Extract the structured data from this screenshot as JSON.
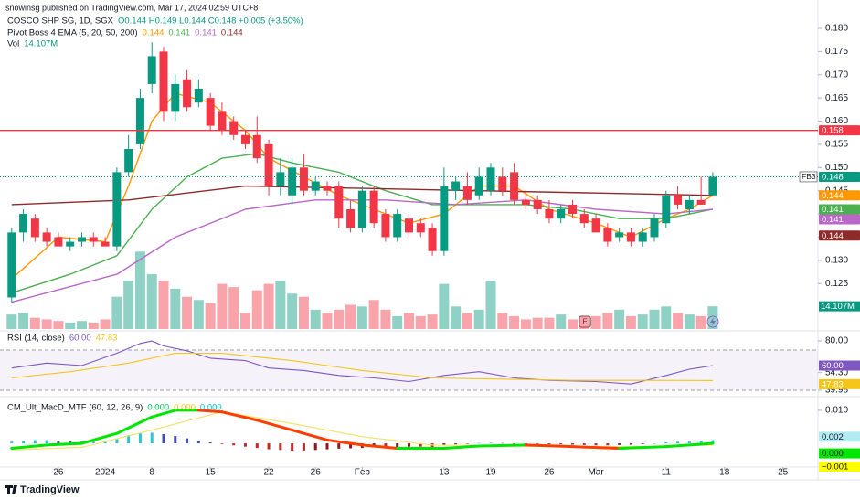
{
  "header": {
    "publisher": "snowinsg published on TradingView.com, Mar 17, 2024 02:59 UTC+8",
    "symbol": "COSCO SHP SG, 1D, SGX",
    "ohlc": "O0.144 H0.149 L0.144 C0.148 +0.005 (+3.50%)",
    "ema_title": "Pivot Boss 4 EMA (5, 20, 50, 200)",
    "vol_title": "Vol",
    "events_marker": "E"
  },
  "footer": "TradingView",
  "chart_data": [
    {
      "type": "candlestick",
      "title": "COSCO SHP SG, 1D, SGX",
      "up_color": "#089981",
      "down_color": "#f23645",
      "x": [
        0,
        1,
        2,
        3,
        4,
        5,
        6,
        7,
        8,
        9,
        10,
        11,
        12,
        13,
        14,
        15,
        16,
        17,
        18,
        19,
        20,
        21,
        22,
        23,
        24,
        25,
        26,
        27,
        28,
        29,
        30,
        31,
        32,
        33,
        34,
        35,
        36,
        37,
        38,
        39,
        40,
        41,
        42,
        43,
        44,
        45,
        46,
        47,
        48,
        49,
        50,
        51,
        52,
        53,
        54,
        55,
        56,
        57,
        58,
        59,
        60
      ],
      "open": [
        0.122,
        0.136,
        0.139,
        0.136,
        0.135,
        0.133,
        0.134,
        0.135,
        0.134,
        0.133,
        0.149,
        0.155,
        0.168,
        0.175,
        0.162,
        0.169,
        0.164,
        0.165,
        0.162,
        0.16,
        0.157,
        0.157,
        0.155,
        0.146,
        0.144,
        0.15,
        0.145,
        0.146,
        0.146,
        0.141,
        0.137,
        0.145,
        0.14,
        0.135,
        0.139,
        0.138,
        0.137,
        0.132,
        0.145,
        0.146,
        0.144,
        0.145,
        0.148,
        0.149,
        0.143,
        0.143,
        0.141,
        0.139,
        0.142,
        0.14,
        0.139,
        0.137,
        0.135,
        0.136,
        0.134,
        0.135,
        0.138,
        0.144,
        0.141,
        0.143,
        0.144
      ],
      "high": [
        0.137,
        0.141,
        0.14,
        0.137,
        0.136,
        0.135,
        0.136,
        0.136,
        0.135,
        0.15,
        0.157,
        0.167,
        0.177,
        0.176,
        0.17,
        0.171,
        0.169,
        0.166,
        0.164,
        0.161,
        0.158,
        0.161,
        0.156,
        0.152,
        0.152,
        0.153,
        0.148,
        0.147,
        0.147,
        0.143,
        0.146,
        0.146,
        0.141,
        0.141,
        0.14,
        0.139,
        0.138,
        0.15,
        0.148,
        0.149,
        0.15,
        0.151,
        0.15,
        0.151,
        0.145,
        0.144,
        0.143,
        0.142,
        0.143,
        0.141,
        0.14,
        0.138,
        0.137,
        0.137,
        0.137,
        0.14,
        0.145,
        0.146,
        0.144,
        0.148,
        0.149
      ],
      "low": [
        0.121,
        0.134,
        0.134,
        0.133,
        0.133,
        0.132,
        0.133,
        0.133,
        0.133,
        0.132,
        0.148,
        0.154,
        0.166,
        0.16,
        0.16,
        0.162,
        0.163,
        0.158,
        0.157,
        0.156,
        0.154,
        0.151,
        0.144,
        0.144,
        0.142,
        0.144,
        0.144,
        0.144,
        0.137,
        0.136,
        0.136,
        0.137,
        0.134,
        0.134,
        0.135,
        0.135,
        0.131,
        0.131,
        0.143,
        0.142,
        0.143,
        0.144,
        0.144,
        0.142,
        0.141,
        0.14,
        0.138,
        0.138,
        0.139,
        0.137,
        0.136,
        0.133,
        0.134,
        0.133,
        0.133,
        0.134,
        0.137,
        0.141,
        0.14,
        0.142,
        0.144
      ],
      "close": [
        0.136,
        0.14,
        0.135,
        0.134,
        0.133,
        0.134,
        0.135,
        0.134,
        0.133,
        0.149,
        0.154,
        0.165,
        0.174,
        0.162,
        0.168,
        0.163,
        0.167,
        0.159,
        0.158,
        0.157,
        0.155,
        0.152,
        0.146,
        0.149,
        0.15,
        0.145,
        0.147,
        0.145,
        0.139,
        0.137,
        0.145,
        0.138,
        0.135,
        0.14,
        0.136,
        0.136,
        0.132,
        0.146,
        0.147,
        0.143,
        0.148,
        0.15,
        0.145,
        0.143,
        0.142,
        0.141,
        0.139,
        0.141,
        0.14,
        0.138,
        0.136,
        0.134,
        0.136,
        0.134,
        0.136,
        0.139,
        0.144,
        0.142,
        0.143,
        0.142,
        0.148
      ],
      "volume": [
        9,
        10,
        7,
        6,
        5,
        4,
        5,
        4,
        6,
        20,
        30,
        48,
        34,
        30,
        25,
        20,
        18,
        16,
        28,
        26,
        10,
        24,
        28,
        30,
        22,
        20,
        12,
        10,
        12,
        15,
        14,
        18,
        12,
        8,
        10,
        8,
        9,
        28,
        14,
        10,
        12,
        30,
        10,
        8,
        6,
        7,
        7,
        9,
        6,
        8,
        8,
        10,
        12,
        8,
        9,
        12,
        14,
        10,
        9,
        8,
        14.107
      ],
      "volume_last_label": "14.107M",
      "volume_lim": [
        0,
        55
      ],
      "series": [
        {
          "color": "#ff9800",
          "x": [
            0,
            4,
            8,
            10,
            12,
            14,
            17,
            20,
            22,
            25,
            28,
            31,
            34,
            37,
            40,
            43,
            46,
            50,
            53,
            56,
            58,
            60
          ],
          "values": [
            0.126,
            0.135,
            0.134,
            0.146,
            0.16,
            0.166,
            0.164,
            0.158,
            0.152,
            0.148,
            0.144,
            0.141,
            0.138,
            0.14,
            0.146,
            0.146,
            0.141,
            0.138,
            0.135,
            0.139,
            0.141,
            0.144
          ]
        },
        {
          "color": "#4caf50",
          "x": [
            0,
            5,
            9,
            12,
            15,
            18,
            21,
            24,
            28,
            32,
            36,
            40,
            44,
            48,
            52,
            56,
            60
          ],
          "values": [
            0.123,
            0.127,
            0.131,
            0.141,
            0.148,
            0.152,
            0.153,
            0.151,
            0.149,
            0.145,
            0.142,
            0.142,
            0.142,
            0.141,
            0.139,
            0.139,
            0.141
          ]
        },
        {
          "color": "#ba68c8",
          "x": [
            0,
            9,
            14,
            20,
            26,
            32,
            38,
            44,
            50,
            56,
            60
          ],
          "values": [
            0.121,
            0.127,
            0.135,
            0.141,
            0.143,
            0.143,
            0.142,
            0.143,
            0.141,
            0.14,
            0.141
          ]
        },
        {
          "color": "#8d2a2a",
          "x": [
            0,
            10,
            20,
            30,
            40,
            50,
            60
          ],
          "values": [
            0.142,
            0.143,
            0.146,
            0.1455,
            0.145,
            0.1445,
            0.144
          ]
        }
      ],
      "hlines": [
        {
          "value": 0.158,
          "color": "#f23645"
        }
      ],
      "last_price": 0.148,
      "last_price_tag": "FB3",
      "xlim": [
        -1,
        69
      ],
      "xticks": [
        {
          "value": 4,
          "label": "26"
        },
        {
          "value": 8,
          "label": "2024"
        },
        {
          "value": 12,
          "label": "8"
        },
        {
          "value": 17,
          "label": "15"
        },
        {
          "value": 22,
          "label": "22"
        },
        {
          "value": 26,
          "label": "26"
        },
        {
          "value": 30,
          "label": "Feb"
        },
        {
          "value": 37,
          "label": "13"
        },
        {
          "value": 41,
          "label": "19"
        },
        {
          "value": 46,
          "label": "26"
        },
        {
          "value": 50,
          "label": "Mar"
        },
        {
          "value": 56,
          "label": "11"
        },
        {
          "value": 61,
          "label": "18"
        },
        {
          "value": 66,
          "label": "25"
        }
      ],
      "ylim": [
        0.1152,
        0.1861
      ],
      "yticks": [
        {
          "value": 0.18,
          "label": "0.180"
        },
        0.175,
        {
          "value": 0.17,
          "label": "0.170"
        },
        0.165,
        {
          "value": 0.16,
          "label": "0.160"
        },
        0.155,
        {
          "value": 0.15,
          "label": "0.150"
        },
        0.145,
        {
          "value": 0.14,
          "label": "0.140"
        },
        0.135,
        {
          "value": 0.13,
          "label": "0.130"
        },
        0.125
      ]
    },
    {
      "type": "line",
      "title": "RSI (14, close)",
      "series": [
        {
          "color": "#7e57c2",
          "x": [
            0,
            3,
            6,
            9,
            11,
            12,
            13,
            15,
            17,
            20,
            22,
            25,
            28,
            31,
            34,
            37,
            40,
            43,
            46,
            50,
            53,
            56,
            58,
            60
          ],
          "values": [
            58,
            62,
            60,
            70,
            78,
            80,
            76,
            72,
            66,
            64,
            58,
            56,
            52,
            50,
            47,
            52,
            55,
            50,
            48,
            47,
            45,
            52,
            57,
            60
          ],
          "last_label": "60.00"
        },
        {
          "color": "#f5c518",
          "x": [
            0,
            5,
            10,
            14,
            18,
            24,
            30,
            36,
            42,
            48,
            54,
            60
          ],
          "values": [
            50,
            55,
            62,
            70,
            70,
            64,
            56,
            50,
            49,
            48,
            48,
            47.83
          ]
        }
      ],
      "ylim": [
        35.5,
        86
      ],
      "yticks": [
        {
          "value": 80,
          "label": "80.00"
        },
        {
          "value": 54.3,
          "label": "54.30"
        },
        39.98
      ]
    },
    {
      "type": "macd",
      "title": "CM_Ult_MacD_MTF (60, 12, 26, 9)",
      "header_values": [
        "0.000",
        "0.000",
        "0.000"
      ],
      "header_colors": [
        "#00c853",
        "#f5c518",
        "#00bcd4"
      ],
      "macd": {
        "up_color": "#00e600",
        "down_color": "#ff3d00",
        "x": [
          0,
          3,
          6,
          9,
          12,
          14,
          16,
          18,
          21,
          24,
          27,
          30,
          33,
          37,
          40,
          44,
          48,
          52,
          56,
          60
        ],
        "values": [
          -0.0015,
          -0.0005,
          0,
          0.003,
          0.008,
          0.01,
          0.01,
          0.0095,
          0.007,
          0.004,
          0.001,
          -0.0005,
          -0.0015,
          -0.0015,
          -0.0008,
          -0.0005,
          -0.001,
          -0.0015,
          -0.001,
          0
        ]
      },
      "signal": {
        "color": "#f7e26b",
        "x": [
          0,
          6,
          12,
          18,
          24,
          30,
          36,
          42,
          48,
          54,
          60
        ],
        "values": [
          -0.002,
          -0.0012,
          0.004,
          0.0095,
          0.006,
          0.002,
          -0.0005,
          -0.0008,
          -0.001,
          -0.001,
          -0.0005
        ]
      },
      "histogram": {
        "colors": {
          "pos_up": "#26c6da",
          "pos_down": "#3f51b5",
          "neg_down": "#c62828",
          "neg_up": "#8b1a1a"
        },
        "values": [
          0.0005,
          0.0008,
          0.001,
          0.001,
          0.0008,
          0.0006,
          0.0005,
          0.0006,
          0.0008,
          0.0015,
          0.0025,
          0.003,
          0.0032,
          0.0028,
          0.0022,
          0.0015,
          0.0008,
          0.0003,
          -0.0002,
          -0.0006,
          -0.001,
          -0.0014,
          -0.0018,
          -0.002,
          -0.0022,
          -0.0022,
          -0.002,
          -0.0018,
          -0.0016,
          -0.0015,
          -0.0014,
          -0.0012,
          -0.0012,
          -0.0011,
          -0.001,
          -0.001,
          -0.0011,
          -0.0006,
          -0.0003,
          -0.0001,
          0.0001,
          0.0002,
          0.0001,
          0,
          -0.0001,
          -0.0002,
          -0.0003,
          -0.0003,
          -0.0004,
          -0.0005,
          -0.0006,
          -0.0006,
          -0.0005,
          -0.0004,
          -0.0002,
          0,
          0.0003,
          0.0005,
          0.0006,
          0.0008,
          0.001
        ]
      },
      "value_boxes": [
        {
          "value": 0.002,
          "label": "0.002",
          "color": "#b2ebf2"
        },
        {
          "value": 0,
          "label": "0.000",
          "color": "#00e600"
        },
        {
          "value": -0.001,
          "label": "−0.001",
          "color": "#ffff00"
        }
      ],
      "ylim": [
        -0.0069,
        0.0133
      ],
      "yticks": [
        {
          "value": 0.01,
          "label": "0.010"
        }
      ]
    }
  ]
}
